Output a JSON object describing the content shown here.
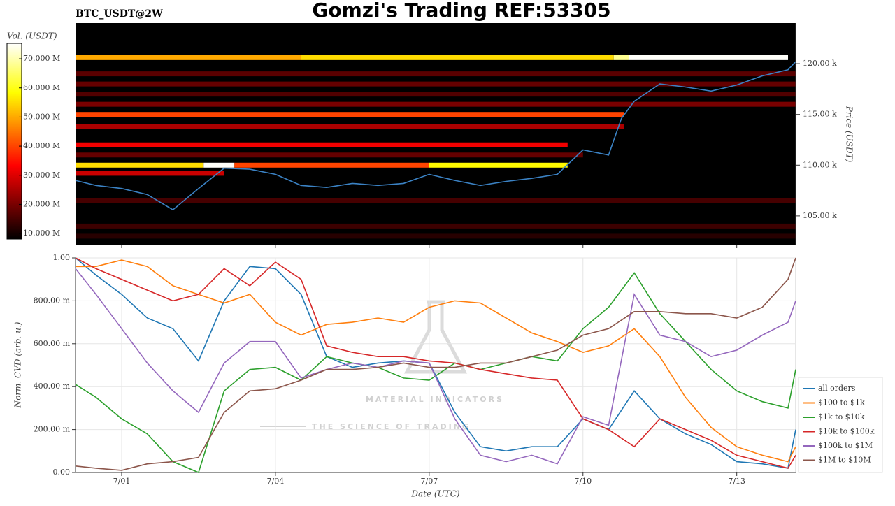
{
  "chart_data": [
    {
      "type": "heatmap",
      "title": "Gomzi's Trading REF:53305",
      "subtitle": "BTC_USDT@2W",
      "ylabel": "Price (USDT)",
      "colormap": "hot",
      "colorbar": {
        "label": "Vol. (USDT)",
        "lim": [
          8.1,
          75.3
        ],
        "ticks": [
          {
            "value": 10,
            "label": "10.000 M"
          },
          {
            "value": 20,
            "label": "20.000 M"
          },
          {
            "value": 30,
            "label": "30.000 M"
          },
          {
            "value": 40,
            "label": "40.000 M"
          },
          {
            "value": 50,
            "label": "50.000 M"
          },
          {
            "value": 60,
            "label": "60.000 M"
          },
          {
            "value": 70,
            "label": "70.000 M"
          }
        ]
      },
      "xlim": [
        0.1,
        14.15
      ],
      "xticks": [
        {
          "value": 1,
          "label": "7/01"
        },
        {
          "value": 4,
          "label": "7/04"
        },
        {
          "value": 7,
          "label": "7/07"
        },
        {
          "value": 10,
          "label": "7/10"
        },
        {
          "value": 13,
          "label": "7/13"
        }
      ],
      "ylim": [
        102.1,
        124.0
      ],
      "yticks": [
        {
          "value": 105,
          "label": "105.00 k"
        },
        {
          "value": 110,
          "label": "110.00 k"
        },
        {
          "value": 115,
          "label": "115.00 k"
        },
        {
          "value": 120,
          "label": "120.00 k"
        }
      ],
      "bands": {
        "price": [
          120.6,
          120.6,
          120.6,
          120.6,
          115.0,
          110.0,
          110.0,
          110.0,
          110.0,
          112.0,
          113.8,
          116.0,
          118.0,
          109.2,
          106.5,
          104.0,
          111.0,
          117.0,
          119.0,
          103.0
        ],
        "x0": [
          0.1,
          4.5,
          10.6,
          10.9,
          0.1,
          0.1,
          2.6,
          3.2,
          7.0,
          0.1,
          0.1,
          0.1,
          0.1,
          0.1,
          0.1,
          0.1,
          0.1,
          0.1,
          0.1,
          0.1
        ],
        "x1": [
          4.5,
          10.6,
          10.9,
          14.0,
          10.8,
          2.6,
          3.2,
          7.0,
          9.7,
          9.7,
          10.8,
          14.15,
          14.15,
          3.0,
          14.15,
          14.15,
          10.0,
          14.15,
          14.15,
          14.15
        ],
        "volume": [
          50,
          55,
          68,
          75,
          40,
          55,
          75,
          40,
          58,
          32,
          25,
          20,
          18,
          28,
          15,
          14,
          18,
          16,
          17,
          12
        ]
      },
      "x": [
        0.1,
        0.5,
        1.0,
        1.5,
        2.0,
        2.5,
        3.0,
        3.5,
        4.0,
        4.5,
        5.0,
        5.5,
        6.0,
        6.5,
        7.0,
        7.5,
        8.0,
        8.5,
        9.0,
        9.5,
        10.0,
        10.5,
        10.75,
        11.0,
        11.5,
        12.0,
        12.5,
        13.0,
        13.5,
        14.0,
        14.15
      ],
      "price": {
        "color": "#3b82c4",
        "values": [
          108.5,
          108.0,
          107.7,
          107.1,
          105.6,
          107.7,
          109.7,
          109.6,
          109.1,
          108.0,
          107.8,
          108.2,
          108.0,
          108.2,
          109.1,
          108.5,
          108.0,
          108.4,
          108.7,
          109.1,
          111.5,
          111.0,
          114.6,
          116.3,
          118.0,
          117.7,
          117.3,
          117.9,
          118.8,
          119.4,
          120.2
        ]
      }
    },
    {
      "type": "line",
      "xlabel": "Date (UTC)",
      "ylabel": "Norm. CVD (arb. u.)",
      "watermark": [
        "MATERIAL INDICATORS",
        "THE SCIENCE OF TRADING"
      ],
      "grid": true,
      "legend": "right",
      "xlim": [
        0.1,
        14.15
      ],
      "xticks": [
        {
          "value": 1,
          "label": "7/01"
        },
        {
          "value": 4,
          "label": "7/04"
        },
        {
          "value": 7,
          "label": "7/07"
        },
        {
          "value": 10,
          "label": "7/10"
        },
        {
          "value": 13,
          "label": "7/13"
        }
      ],
      "ylim": [
        0,
        1
      ],
      "yticks": [
        {
          "value": 0,
          "label": "0.00"
        },
        {
          "value": 0.2,
          "label": "200.00 m"
        },
        {
          "value": 0.4,
          "label": "400.00 m"
        },
        {
          "value": 0.6,
          "label": "600.00 m"
        },
        {
          "value": 0.8,
          "label": "800.00 m"
        },
        {
          "value": 1,
          "label": "1.00"
        }
      ],
      "x": [
        0.1,
        0.5,
        1.0,
        1.5,
        2.0,
        2.5,
        3.0,
        3.5,
        4.0,
        4.5,
        5.0,
        5.5,
        6.0,
        6.5,
        7.0,
        7.5,
        8.0,
        8.5,
        9.0,
        9.5,
        10.0,
        10.5,
        11.0,
        11.5,
        12.0,
        12.5,
        13.0,
        13.5,
        14.0,
        14.15
      ],
      "series": [
        {
          "name": "all orders",
          "color": "#1f77b4",
          "values": [
            1.0,
            0.92,
            0.83,
            0.72,
            0.67,
            0.52,
            0.8,
            0.96,
            0.95,
            0.83,
            0.54,
            0.49,
            0.51,
            0.52,
            0.51,
            0.28,
            0.12,
            0.1,
            0.12,
            0.12,
            0.25,
            0.2,
            0.38,
            0.25,
            0.18,
            0.13,
            0.05,
            0.04,
            0.02,
            0.2
          ]
        },
        {
          "name": "$100 to $1k",
          "color": "#ff7f0e",
          "values": [
            0.96,
            0.96,
            0.99,
            0.96,
            0.87,
            0.83,
            0.79,
            0.83,
            0.7,
            0.64,
            0.69,
            0.7,
            0.72,
            0.7,
            0.77,
            0.8,
            0.79,
            0.72,
            0.65,
            0.61,
            0.56,
            0.59,
            0.67,
            0.54,
            0.35,
            0.21,
            0.12,
            0.08,
            0.05,
            0.12
          ]
        },
        {
          "name": "$1k to $10k",
          "color": "#2ca02c",
          "values": [
            0.41,
            0.35,
            0.25,
            0.18,
            0.05,
            0.0,
            0.38,
            0.48,
            0.49,
            0.43,
            0.54,
            0.51,
            0.49,
            0.44,
            0.43,
            0.51,
            0.48,
            0.51,
            0.54,
            0.52,
            0.67,
            0.77,
            0.93,
            0.74,
            0.61,
            0.48,
            0.38,
            0.33,
            0.3,
            0.48
          ]
        },
        {
          "name": "$10k to $100k",
          "color": "#d62728",
          "values": [
            1.0,
            0.95,
            0.9,
            0.85,
            0.8,
            0.83,
            0.95,
            0.87,
            0.98,
            0.9,
            0.59,
            0.56,
            0.54,
            0.54,
            0.52,
            0.51,
            0.48,
            0.46,
            0.44,
            0.43,
            0.25,
            0.2,
            0.12,
            0.25,
            0.2,
            0.15,
            0.08,
            0.05,
            0.02,
            0.08
          ]
        },
        {
          "name": "$100k to $1M",
          "color": "#9467bd",
          "values": [
            0.95,
            0.83,
            0.67,
            0.51,
            0.38,
            0.28,
            0.51,
            0.61,
            0.61,
            0.44,
            0.48,
            0.51,
            0.49,
            0.52,
            0.51,
            0.25,
            0.08,
            0.05,
            0.08,
            0.04,
            0.26,
            0.22,
            0.83,
            0.64,
            0.61,
            0.54,
            0.57,
            0.64,
            0.7,
            0.8
          ]
        },
        {
          "name": "$1M to $10M",
          "color": "#8c564b",
          "values": [
            0.03,
            0.02,
            0.01,
            0.04,
            0.05,
            0.07,
            0.28,
            0.38,
            0.39,
            0.43,
            0.48,
            0.48,
            0.49,
            0.51,
            0.49,
            0.49,
            0.51,
            0.51,
            0.54,
            0.57,
            0.64,
            0.67,
            0.75,
            0.75,
            0.74,
            0.74,
            0.72,
            0.77,
            0.9,
            1.0
          ]
        }
      ]
    }
  ]
}
